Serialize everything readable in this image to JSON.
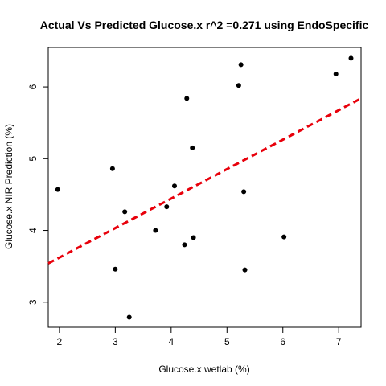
{
  "chart_data": {
    "type": "scatter",
    "title": "Actual Vs Predicted Glucose.x r^2 =0.271 using EndoSpecific",
    "xlabel": "Glucose.x wetlab (%)",
    "ylabel": "Glucose.x NIR Prediction (%)",
    "xlim": [
      1.8,
      7.4
    ],
    "ylim": [
      2.65,
      6.55
    ],
    "x_ticks": [
      2,
      3,
      4,
      5,
      6,
      7
    ],
    "y_ticks": [
      3,
      4,
      5,
      6
    ],
    "grid": false,
    "point_color": "#000000",
    "points": [
      {
        "x": 1.97,
        "y": 4.57
      },
      {
        "x": 2.95,
        "y": 4.86
      },
      {
        "x": 3.0,
        "y": 3.46
      },
      {
        "x": 3.17,
        "y": 4.26
      },
      {
        "x": 3.25,
        "y": 2.79
      },
      {
        "x": 3.72,
        "y": 4.0
      },
      {
        "x": 3.92,
        "y": 4.33
      },
      {
        "x": 4.06,
        "y": 4.62
      },
      {
        "x": 4.24,
        "y": 3.8
      },
      {
        "x": 4.28,
        "y": 5.84
      },
      {
        "x": 4.38,
        "y": 5.15
      },
      {
        "x": 4.4,
        "y": 3.9
      },
      {
        "x": 5.21,
        "y": 6.02
      },
      {
        "x": 5.25,
        "y": 6.31
      },
      {
        "x": 5.3,
        "y": 4.54
      },
      {
        "x": 5.32,
        "y": 3.45
      },
      {
        "x": 6.02,
        "y": 3.91
      },
      {
        "x": 6.95,
        "y": 6.18
      },
      {
        "x": 7.22,
        "y": 6.4
      }
    ],
    "regression_line": {
      "x": [
        1.8,
        7.4
      ],
      "y": [
        3.54,
        5.84
      ],
      "color": "#e8000b",
      "style": "dashed"
    }
  }
}
